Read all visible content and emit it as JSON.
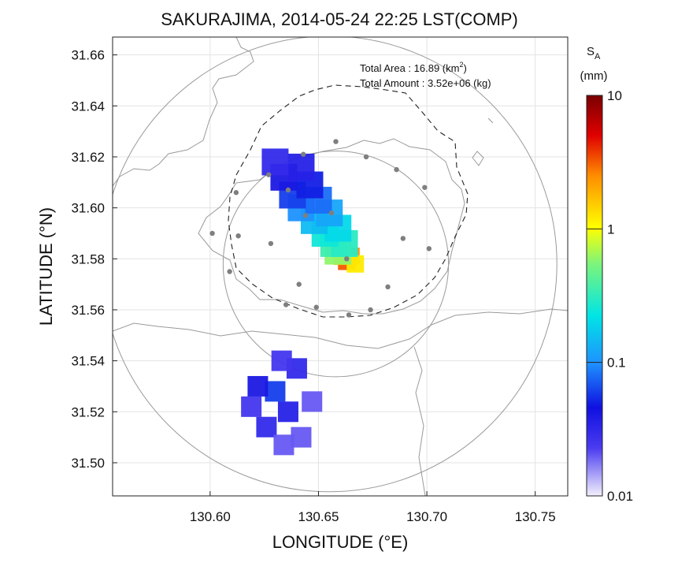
{
  "chart_data": {
    "type": "scatter",
    "title": "SAKURAJIMA, 2014-05-24 22:25 LST(COMP)",
    "xlabel": "LONGITUDE (°E)",
    "ylabel": "LATITUDE (°N)",
    "xlim": [
      130.555,
      130.765
    ],
    "ylim": [
      31.487,
      31.667
    ],
    "xticks": [
      "130.60",
      "130.65",
      "130.70",
      "130.75"
    ],
    "yticks": [
      "31.50",
      "31.52",
      "31.54",
      "31.56",
      "31.58",
      "31.60",
      "31.62",
      "31.64",
      "31.66"
    ],
    "grid": true,
    "colorbar": {
      "title": "S",
      "subscript": "A",
      "unit": "(mm)",
      "scale": "log",
      "range": [
        0.01,
        10
      ],
      "ticks": [
        "10",
        "1",
        "0.1",
        "0.01"
      ]
    },
    "annotations": {
      "area_label": "Total Area   : 16.89 (km",
      "area_sup": "2",
      "area_close": ")",
      "amount_label": "Total Amount : 3.52e+06 (kg)"
    },
    "range_rings": [
      {
        "lon": 130.655,
        "lat": 31.578,
        "radius_deg": 0.105
      },
      {
        "lon": 130.658,
        "lat": 31.578,
        "radius_deg": 0.052
      }
    ],
    "stations": [
      {
        "lon": 130.658,
        "lat": 31.626
      },
      {
        "lon": 130.672,
        "lat": 31.62
      },
      {
        "lon": 130.686,
        "lat": 31.615
      },
      {
        "lon": 130.643,
        "lat": 31.621
      },
      {
        "lon": 130.627,
        "lat": 31.613
      },
      {
        "lon": 130.612,
        "lat": 31.606
      },
      {
        "lon": 130.636,
        "lat": 31.607
      },
      {
        "lon": 130.656,
        "lat": 31.598
      },
      {
        "lon": 130.644,
        "lat": 31.597
      },
      {
        "lon": 130.699,
        "lat": 31.608
      },
      {
        "lon": 130.601,
        "lat": 31.59
      },
      {
        "lon": 130.613,
        "lat": 31.589
      },
      {
        "lon": 130.628,
        "lat": 31.586
      },
      {
        "lon": 130.689,
        "lat": 31.588
      },
      {
        "lon": 130.701,
        "lat": 31.584
      },
      {
        "lon": 130.663,
        "lat": 31.58
      },
      {
        "lon": 130.609,
        "lat": 31.575
      },
      {
        "lon": 130.641,
        "lat": 31.57
      },
      {
        "lon": 130.682,
        "lat": 31.569
      },
      {
        "lon": 130.635,
        "lat": 31.562
      },
      {
        "lon": 130.649,
        "lat": 31.561
      },
      {
        "lon": 130.664,
        "lat": 31.558
      },
      {
        "lon": 130.674,
        "lat": 31.56
      }
    ],
    "series": [
      {
        "region": "plume",
        "cells": [
          {
            "lon": 130.663,
            "lat": 31.579,
            "value": 3.2
          },
          {
            "lon": 130.665,
            "lat": 31.581,
            "value": 2.5
          },
          {
            "lon": 130.661,
            "lat": 31.581,
            "value": 1.6
          },
          {
            "lon": 130.667,
            "lat": 31.578,
            "value": 1.2
          },
          {
            "lon": 130.659,
            "lat": 31.583,
            "value": 0.6
          },
          {
            "lon": 130.657,
            "lat": 31.586,
            "value": 0.35
          },
          {
            "lon": 130.662,
            "lat": 31.586,
            "value": 0.3
          },
          {
            "lon": 130.653,
            "lat": 31.59,
            "value": 0.25
          },
          {
            "lon": 130.659,
            "lat": 31.592,
            "value": 0.2
          },
          {
            "lon": 130.648,
            "lat": 31.595,
            "value": 0.15
          },
          {
            "lon": 130.655,
            "lat": 31.598,
            "value": 0.12
          },
          {
            "lon": 130.642,
            "lat": 31.6,
            "value": 0.1
          },
          {
            "lon": 130.65,
            "lat": 31.603,
            "value": 0.08
          },
          {
            "lon": 130.638,
            "lat": 31.605,
            "value": 0.06
          },
          {
            "lon": 130.646,
            "lat": 31.609,
            "value": 0.05
          },
          {
            "lon": 130.634,
            "lat": 31.612,
            "value": 0.04
          },
          {
            "lon": 130.642,
            "lat": 31.616,
            "value": 0.035
          },
          {
            "lon": 130.63,
            "lat": 31.618,
            "value": 0.03
          }
        ]
      },
      {
        "region": "south-patch",
        "cells": [
          {
            "lon": 130.63,
            "lat": 31.528,
            "value": 0.06
          },
          {
            "lon": 130.622,
            "lat": 31.53,
            "value": 0.04
          },
          {
            "lon": 130.636,
            "lat": 31.52,
            "value": 0.035
          },
          {
            "lon": 130.626,
            "lat": 31.514,
            "value": 0.03
          },
          {
            "lon": 130.64,
            "lat": 31.537,
            "value": 0.03
          },
          {
            "lon": 130.633,
            "lat": 31.54,
            "value": 0.025
          },
          {
            "lon": 130.619,
            "lat": 31.522,
            "value": 0.025
          },
          {
            "lon": 130.642,
            "lat": 31.51,
            "value": 0.02
          },
          {
            "lon": 130.634,
            "lat": 31.507,
            "value": 0.02
          },
          {
            "lon": 130.647,
            "lat": 31.524,
            "value": 0.02
          }
        ]
      }
    ]
  }
}
